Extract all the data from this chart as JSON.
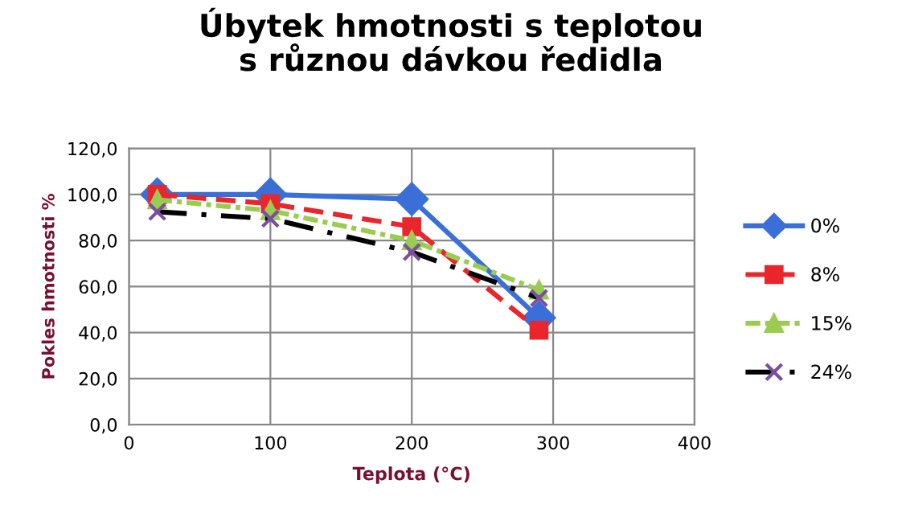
{
  "chart_data": {
    "type": "line",
    "title": "Úbytek hmotnosti s teplotou\ns různou dávkou ředidla",
    "xlabel": "Teplota (°C)",
    "ylabel": "Pokles hmotnosti %",
    "x": [
      20,
      100,
      200,
      290
    ],
    "series": [
      {
        "name": "0%",
        "color": "#3a6fd8",
        "values": [
          100,
          100,
          98,
          46.4
        ],
        "marker": "diamond",
        "line_style": "solid"
      },
      {
        "name": "8%",
        "color": "#e8262b",
        "values": [
          100,
          96,
          86,
          41
        ],
        "marker": "square",
        "line_style": "dashed"
      },
      {
        "name": "15%",
        "color": "#9acc52",
        "values": [
          97.7,
          93,
          80,
          58.5
        ],
        "marker": "triangle",
        "line_style": "dotted"
      },
      {
        "name": "24%",
        "color": "#000000",
        "values": [
          92.5,
          89.5,
          75,
          55
        ],
        "marker": "cross",
        "line_style": "dashdot"
      }
    ],
    "xlim": [
      0,
      400
    ],
    "xticks": [
      0,
      100,
      200,
      300,
      400
    ],
    "ylim": [
      0,
      120
    ],
    "yticks": [
      {
        "value": 0,
        "label": "0,0"
      },
      {
        "value": 20,
        "label": "20,0"
      },
      {
        "value": 40,
        "label": "40,0"
      },
      {
        "value": 60,
        "label": "60,0"
      },
      {
        "value": 80,
        "label": "80,0"
      },
      {
        "value": 100,
        "label": "100,0"
      },
      {
        "value": 120,
        "label": "120,0"
      }
    ],
    "grid": true,
    "legend": "right"
  }
}
